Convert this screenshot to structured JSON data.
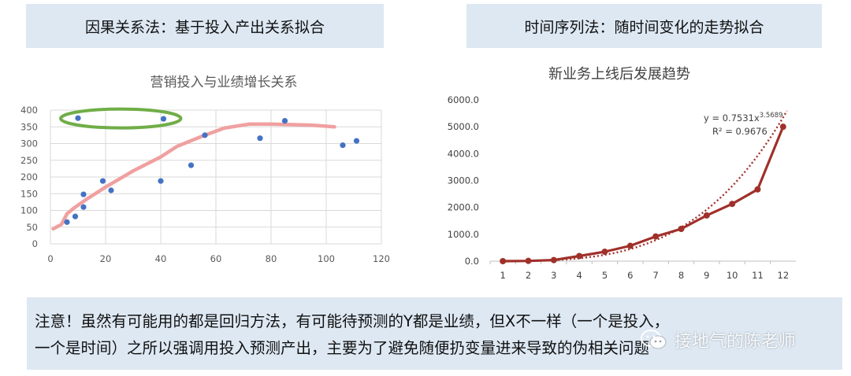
{
  "headers": {
    "left": "因果关系法：基于投入产出关系拟合",
    "right": "时间序列法：随时间变化的走势拟合"
  },
  "chart_data": [
    {
      "type": "scatter",
      "title": "营销投入与业绩增长关系",
      "xlabel": "",
      "ylabel": "",
      "xlim": [
        0,
        120
      ],
      "ylim": [
        0,
        400
      ],
      "xticks": [
        0,
        20,
        40,
        60,
        80,
        100,
        120
      ],
      "yticks": [
        0,
        50,
        100,
        150,
        200,
        250,
        300,
        350,
        400
      ],
      "grid": true,
      "points": [
        {
          "x": 6,
          "y": 65
        },
        {
          "x": 9,
          "y": 82
        },
        {
          "x": 10,
          "y": 376
        },
        {
          "x": 12,
          "y": 110
        },
        {
          "x": 12,
          "y": 148
        },
        {
          "x": 19,
          "y": 188
        },
        {
          "x": 22,
          "y": 160
        },
        {
          "x": 40,
          "y": 188
        },
        {
          "x": 41,
          "y": 374
        },
        {
          "x": 51,
          "y": 235
        },
        {
          "x": 56,
          "y": 325
        },
        {
          "x": 76,
          "y": 316
        },
        {
          "x": 85,
          "y": 368
        },
        {
          "x": 106,
          "y": 295
        },
        {
          "x": 111,
          "y": 308
        }
      ],
      "trend_curve": [
        {
          "x": 1,
          "y": 45
        },
        {
          "x": 4,
          "y": 58
        },
        {
          "x": 6,
          "y": 90
        },
        {
          "x": 9,
          "y": 110
        },
        {
          "x": 13,
          "y": 133
        },
        {
          "x": 20,
          "y": 170
        },
        {
          "x": 30,
          "y": 218
        },
        {
          "x": 40,
          "y": 260
        },
        {
          "x": 46,
          "y": 292
        },
        {
          "x": 55,
          "y": 322
        },
        {
          "x": 63,
          "y": 346
        },
        {
          "x": 72,
          "y": 358
        },
        {
          "x": 80,
          "y": 358
        },
        {
          "x": 95,
          "y": 355
        },
        {
          "x": 103,
          "y": 350
        }
      ],
      "highlight_ellipse_points": [
        {
          "x": 10,
          "y": 376
        },
        {
          "x": 41,
          "y": 374
        }
      ],
      "colors": {
        "points": "#4472c4",
        "trend": "#f0a0a0",
        "ellipse": "#70ad47"
      }
    },
    {
      "type": "line",
      "title": "新业务上线后发展趋势",
      "categories": [
        "1",
        "2",
        "3",
        "4",
        "5",
        "6",
        "7",
        "8",
        "9",
        "10",
        "11",
        "12"
      ],
      "values": [
        0,
        10,
        40,
        190,
        350,
        570,
        920,
        1200,
        1700,
        2130,
        2670,
        5000
      ],
      "ylim": [
        0,
        6000
      ],
      "yticks": [
        "0.0",
        "1000.0",
        "2000.0",
        "3000.0",
        "4000.0",
        "5000.0",
        "6000.0"
      ],
      "trendline": {
        "type": "power",
        "equation": "y = 0.7531x",
        "exponent": "3.5689",
        "r2_label": "R² = 0.9676",
        "a": 0.7531,
        "b": 3.5689
      },
      "colors": {
        "line": "#a0302a",
        "trend": "#a0302a"
      }
    }
  ],
  "note": {
    "line1": "注意！虽然有可能用的都是回归方法，有可能待预测的Y都是业绩，但X不一样（一个是投入，",
    "line2": "一个是时间）之所以强调用投入预测产出，主要为了避免随便扔变量进来导致的伪相关问题"
  },
  "watermark": {
    "text": "接地气的陈老师",
    "icon": "wechat-icon"
  }
}
